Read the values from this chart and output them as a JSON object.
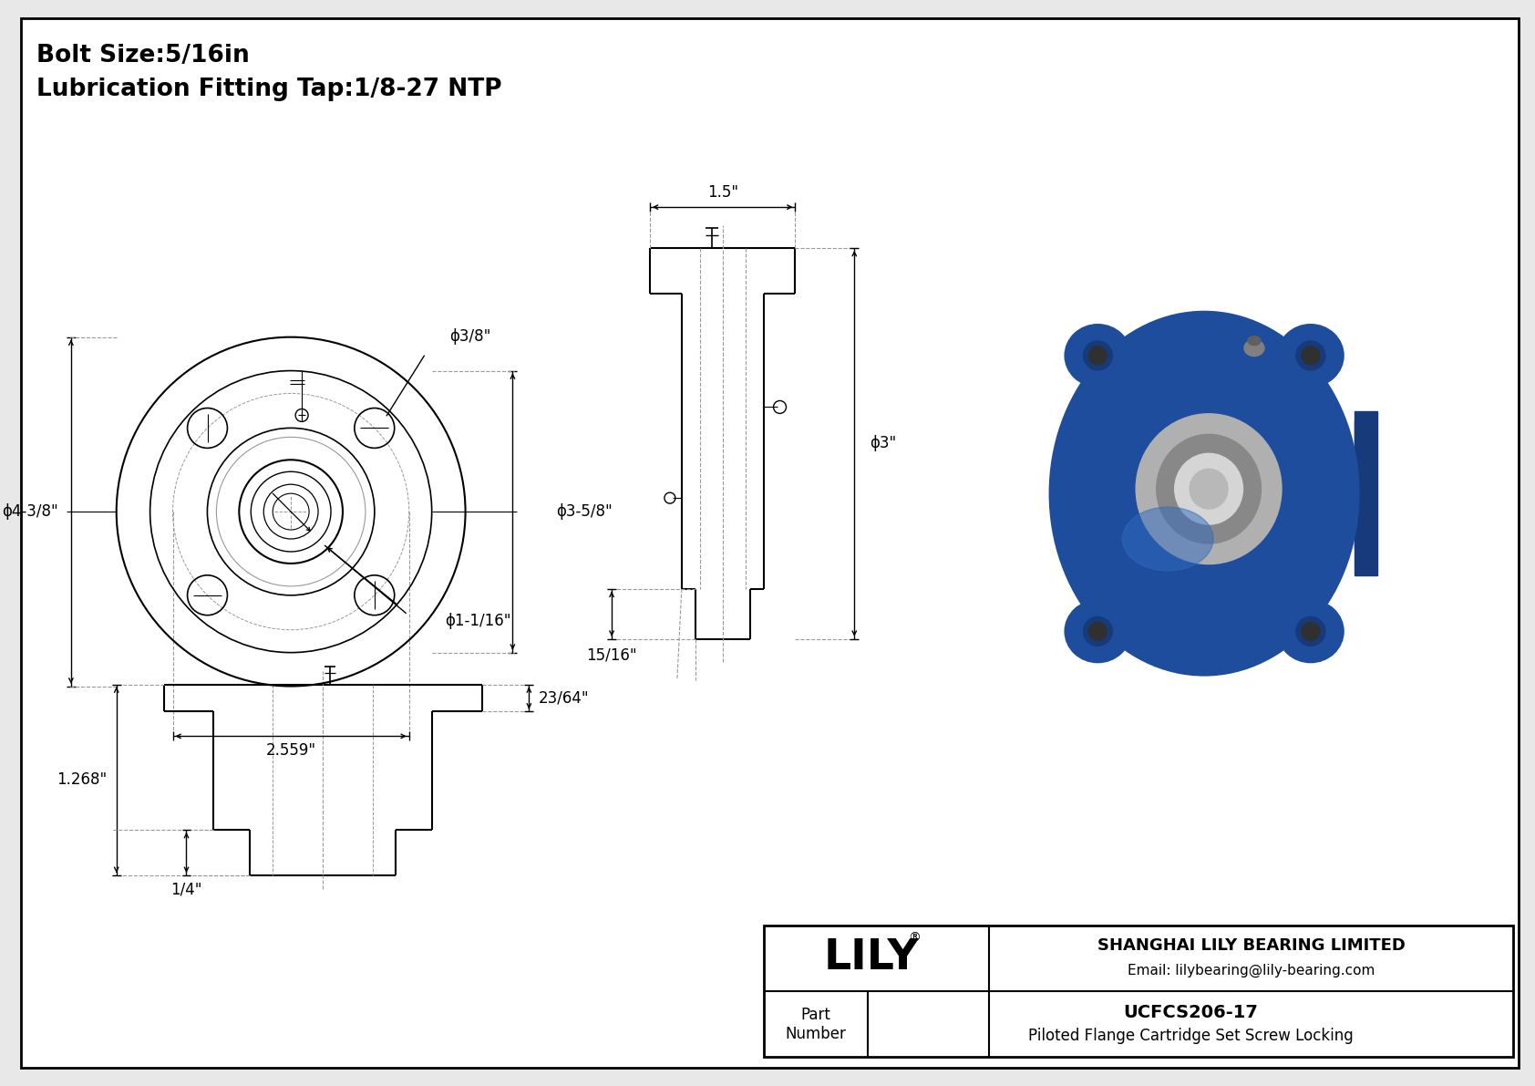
{
  "bg_color": "#e8e8e8",
  "border_color": "#000000",
  "line_color": "#000000",
  "gray_line_color": "#999999",
  "light_gray": "#cccccc",
  "title_line1": "Bolt Size:5/16in",
  "title_line2": "Lubrication Fitting Tap:1/8-27 NTP",
  "dim_phi_bolt": "ϕ3/8\"",
  "dim_phi_outer": "ϕ4-3/8\"",
  "dim_phi_mid": "ϕ3-5/8\"",
  "dim_phi_bore": "ϕ1-1/16\"",
  "dim_bc": "2.559\"",
  "dim_width": "1.5\"",
  "dim_depth": "ϕ3\"",
  "dim_15_16": "15/16\"",
  "dim_23_64": "23/64\"",
  "dim_1268": "1.268\"",
  "dim_1_4": "1/4\"",
  "company_name": "SHANGHAI LILY BEARING LIMITED",
  "company_email": "Email: lilybearing@lily-bearing.com",
  "brand": "LILY",
  "registered": "®",
  "part_label": "Part\nNumber",
  "part_number": "UCFCS206-17",
  "part_desc": "Piloted Flange Cartridge Set Screw Locking",
  "blue_body": "#1e4d9e",
  "blue_dark": "#163a7a",
  "blue_light": "#2e6abf",
  "metal_gray": "#b0b0b0",
  "metal_light": "#d5d5d5",
  "metal_dark": "#888888"
}
